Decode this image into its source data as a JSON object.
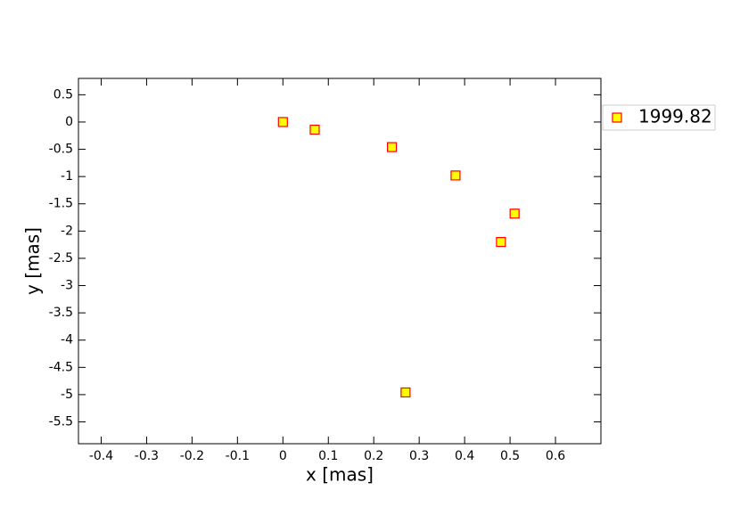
{
  "chart_data": {
    "type": "scatter",
    "x_label": "x [mas]",
    "y_label": "y [mas]",
    "series": [
      {
        "name": "1999.82",
        "color": "#ffff00",
        "edge_color": "#ff0000",
        "x": [
          0,
          0.07,
          0.24,
          0.38,
          0.51,
          0.48,
          0.27
        ],
        "values": [
          0,
          -0.14,
          -0.46,
          -0.98,
          -1.68,
          -2.2,
          -4.96
        ]
      }
    ],
    "xlim": [
      -0.45,
      0.7
    ],
    "ylim": [
      -5.9,
      0.8
    ],
    "xticks": [
      -0.4,
      -0.3,
      -0.2,
      -0.1,
      0,
      0.1,
      0.2,
      0.3,
      0.4,
      0.5,
      0.6
    ],
    "yticks": [
      0.5,
      0,
      -0.5,
      -1,
      -1.5,
      -2,
      -2.5,
      -3,
      -3.5,
      -4,
      -4.5,
      -5,
      -5.5
    ],
    "grid": false,
    "legend": "outside-right"
  }
}
